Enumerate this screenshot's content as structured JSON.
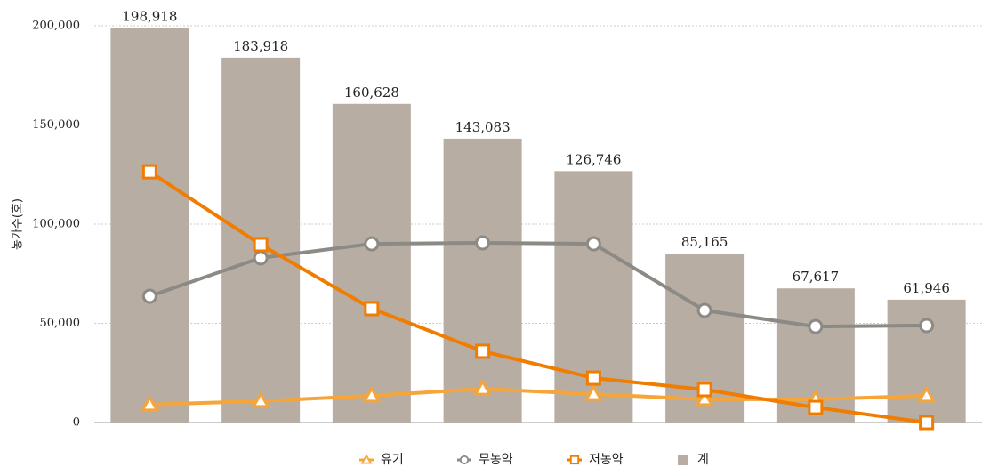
{
  "chart_data": {
    "type": "bar",
    "y_label": "농가수(호)",
    "categories": [
      null,
      null,
      null,
      null,
      null,
      null,
      null,
      null
    ],
    "ylim": [
      0,
      200000
    ],
    "yticks": [
      {
        "value": 0,
        "label": "0"
      },
      {
        "value": 50000,
        "label": "50,000"
      },
      {
        "value": 100000,
        "label": "100,000"
      },
      {
        "value": 150000,
        "label": "150,000"
      },
      {
        "value": 200000,
        "label": "200,000"
      }
    ],
    "grid": true,
    "legend": "bottom",
    "series": [
      {
        "name": "유기",
        "type": "line",
        "marker": "triangle",
        "color": "#f5a53a",
        "values": [
          9000,
          10800,
          13500,
          17000,
          14300,
          11700,
          11700,
          13500
        ]
      },
      {
        "name": "무농약",
        "type": "line",
        "marker": "circle",
        "color": "#8c8a84",
        "values": [
          63700,
          83000,
          90100,
          90600,
          90100,
          56500,
          48400,
          48900
        ]
      },
      {
        "name": "저농약",
        "type": "line",
        "marker": "square",
        "color": "#f07c00",
        "values": [
          126400,
          89700,
          57400,
          35900,
          22400,
          16600,
          7600,
          0
        ]
      },
      {
        "name": "계",
        "type": "bar",
        "marker": "bar",
        "color": "#b8ada3",
        "values": [
          198918,
          183918,
          160628,
          143083,
          126746,
          85165,
          67617,
          61946
        ],
        "value_labels": [
          "198,918",
          "183,918",
          "160,628",
          "143,083",
          "126,746",
          "85,165",
          "67,617",
          "61,946"
        ]
      }
    ]
  }
}
